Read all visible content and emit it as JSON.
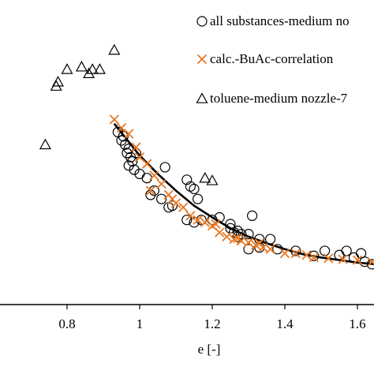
{
  "chart_data": {
    "type": "scatter",
    "xlabel": "e [-]",
    "ylabel": "",
    "title": "",
    "xlim": [
      0.66,
      1.69
    ],
    "x_ticks": [
      "0.8",
      "1",
      "1.2",
      "1.4",
      "1.6"
    ],
    "y_ticks": [],
    "grid": false,
    "legend_position": "top-right",
    "series": [
      {
        "name": "all substances-medium no",
        "marker": "circle",
        "color": "#000000",
        "points": [
          [
            0.94,
            2.3
          ],
          [
            0.95,
            2.2
          ],
          [
            0.955,
            2.25
          ],
          [
            0.96,
            2.15
          ],
          [
            0.965,
            2.05
          ],
          [
            0.97,
            2.1
          ],
          [
            0.975,
            2.0
          ],
          [
            0.98,
            1.95
          ],
          [
            0.99,
            2.05
          ],
          [
            0.97,
            1.9
          ],
          [
            0.985,
            1.85
          ],
          [
            1.0,
            1.8
          ],
          [
            1.02,
            1.75
          ],
          [
            1.03,
            1.55
          ],
          [
            1.04,
            1.6
          ],
          [
            1.06,
            1.5
          ],
          [
            1.07,
            1.88
          ],
          [
            1.08,
            1.4
          ],
          [
            1.09,
            1.42
          ],
          [
            1.13,
            1.73
          ],
          [
            1.14,
            1.65
          ],
          [
            1.15,
            1.62
          ],
          [
            1.16,
            1.5
          ],
          [
            1.13,
            1.25
          ],
          [
            1.15,
            1.22
          ],
          [
            1.17,
            1.25
          ],
          [
            1.2,
            1.25
          ],
          [
            1.22,
            1.28
          ],
          [
            1.25,
            1.15
          ],
          [
            1.26,
            1.1
          ],
          [
            1.27,
            1.12
          ],
          [
            1.28,
            1.08
          ],
          [
            1.3,
            1.08
          ],
          [
            1.25,
            1.2
          ],
          [
            1.27,
            1.05
          ],
          [
            1.31,
            1.3
          ],
          [
            1.33,
            1.02
          ],
          [
            1.36,
            1.02
          ],
          [
            1.38,
            0.9
          ],
          [
            1.43,
            0.88
          ],
          [
            1.48,
            0.82
          ],
          [
            1.51,
            0.88
          ],
          [
            1.55,
            0.83
          ],
          [
            1.57,
            0.88
          ],
          [
            1.59,
            0.8
          ],
          [
            1.61,
            0.85
          ],
          [
            1.62,
            0.75
          ],
          [
            1.64,
            0.72
          ],
          [
            1.66,
            0.7
          ],
          [
            1.68,
            0.72
          ],
          [
            1.3,
            0.9
          ],
          [
            1.33,
            0.92
          ]
        ]
      },
      {
        "name": "calc.-BuAc-correlation",
        "marker": "cross",
        "color": "#e87722",
        "points": [
          [
            0.93,
            2.45
          ],
          [
            0.95,
            2.35
          ],
          [
            0.97,
            2.28
          ],
          [
            0.99,
            2.12
          ],
          [
            1.0,
            2.0
          ],
          [
            1.02,
            1.92
          ],
          [
            1.04,
            1.78
          ],
          [
            1.06,
            1.68
          ],
          [
            1.08,
            1.55
          ],
          [
            1.1,
            1.45
          ],
          [
            1.12,
            1.4
          ],
          [
            1.14,
            1.3
          ],
          [
            1.16,
            1.25
          ],
          [
            1.18,
            1.22
          ],
          [
            1.2,
            1.18
          ],
          [
            1.22,
            1.1
          ],
          [
            1.24,
            1.05
          ],
          [
            1.26,
            1.02
          ],
          [
            1.28,
            1.0
          ],
          [
            1.3,
            0.98
          ],
          [
            1.32,
            0.95
          ],
          [
            1.34,
            0.92
          ],
          [
            1.36,
            0.9
          ],
          [
            1.4,
            0.85
          ],
          [
            1.43,
            0.85
          ],
          [
            1.46,
            0.83
          ],
          [
            1.48,
            0.8
          ],
          [
            1.52,
            0.79
          ],
          [
            1.56,
            0.78
          ],
          [
            1.6,
            0.77
          ],
          [
            1.64,
            0.75
          ],
          [
            1.68,
            0.74
          ],
          [
            1.03,
            1.6
          ],
          [
            1.09,
            1.5
          ],
          [
            1.21,
            1.2
          ],
          [
            1.27,
            1.03
          ],
          [
            1.33,
            0.97
          ]
        ]
      },
      {
        "name": "toluene-medium nozzle-7",
        "marker": "triangle",
        "color": "#000000",
        "points": [
          [
            0.74,
            2.15
          ],
          [
            0.77,
            2.85
          ],
          [
            0.775,
            2.9
          ],
          [
            0.8,
            3.05
          ],
          [
            0.84,
            3.08
          ],
          [
            0.86,
            3.0
          ],
          [
            0.87,
            3.05
          ],
          [
            0.89,
            3.05
          ],
          [
            0.93,
            3.28
          ],
          [
            1.18,
            1.75
          ],
          [
            1.2,
            1.72
          ]
        ]
      }
    ],
    "fit_curve": {
      "name": "",
      "color": "#000000",
      "points": [
        [
          0.93,
          2.4
        ],
        [
          1.0,
          2.02
        ],
        [
          1.05,
          1.8
        ],
        [
          1.1,
          1.6
        ],
        [
          1.15,
          1.42
        ],
        [
          1.2,
          1.28
        ],
        [
          1.25,
          1.15
        ],
        [
          1.3,
          1.05
        ],
        [
          1.35,
          0.97
        ],
        [
          1.4,
          0.9
        ],
        [
          1.45,
          0.84
        ],
        [
          1.5,
          0.8
        ],
        [
          1.55,
          0.77
        ],
        [
          1.6,
          0.74
        ],
        [
          1.65,
          0.72
        ],
        [
          1.69,
          0.71
        ]
      ]
    }
  }
}
